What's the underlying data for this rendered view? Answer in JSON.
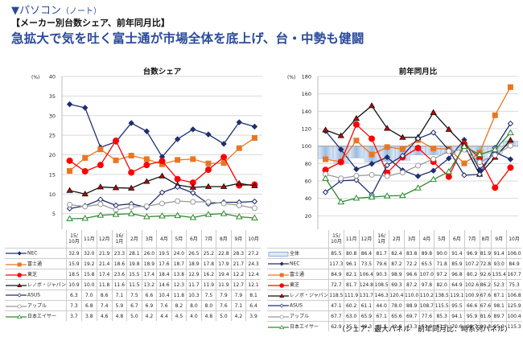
{
  "header": {
    "section": "▼パソコン",
    "section_sub": "（ノート）",
    "subtitle": "【メーカー別台数シェア、前年同月比】",
    "headline": "急拡大で気を吐く富士通が市場全体を底上げ、台・中勢も健闘"
  },
  "footnote": "（シェア：最大パネル　前年同月比：時系列パネル）",
  "chart_data": [
    {
      "type": "line",
      "title": "台数シェア",
      "ylabel": "(%)",
      "xlabel": "",
      "ylim": [
        0,
        40
      ],
      "yticks": [
        0,
        5,
        10,
        15,
        20,
        25,
        30,
        35,
        40
      ],
      "grid": true,
      "legend": "table-left",
      "categories": [
        "15/10月",
        "11月",
        "12月",
        "16/1月",
        "2月",
        "3月",
        "4月",
        "5月",
        "6月",
        "7月",
        "8月",
        "9月",
        "10月"
      ],
      "series": [
        {
          "name": "NEC",
          "color": "#1f2f6e",
          "marker": "diamond-filled",
          "values": [
            32.9,
            32.0,
            21.9,
            23.3,
            28.1,
            26.0,
            19.5,
            24.0,
            26.5,
            25.2,
            22.8,
            28.3,
            27.2
          ]
        },
        {
          "name": "富士通",
          "color": "#e87722",
          "marker": "square-filled",
          "values": [
            15.9,
            19.2,
            21.4,
            18.6,
            19.8,
            18.9,
            17.6,
            18.7,
            18.9,
            17.8,
            17.9,
            21.7,
            24.3
          ]
        },
        {
          "name": "東芝",
          "color": "#ff0000",
          "marker": "circle-filled",
          "values": [
            18.5,
            15.8,
            17.4,
            23.6,
            15.5,
            17.4,
            18.4,
            13.8,
            12.9,
            16.2,
            19.4,
            12.2,
            12.4
          ]
        },
        {
          "name": "レノボ・ジャパン",
          "color": "#111111",
          "marker": "triangle-red",
          "values": [
            10.9,
            10.0,
            11.8,
            11.6,
            11.5,
            13.2,
            14.6,
            12.3,
            11.7,
            11.9,
            11.9,
            12.7,
            12.1
          ]
        },
        {
          "name": "ASUS",
          "color": "#1f2f6e",
          "marker": "diamond-open",
          "values": [
            6.3,
            7.0,
            8.6,
            7.1,
            7.5,
            6.6,
            10.4,
            11.8,
            10.3,
            7.5,
            7.9,
            7.9,
            8.1
          ]
        },
        {
          "name": "アップル",
          "color": "#999999",
          "marker": "circle-open",
          "values": [
            7.3,
            6.8,
            7.4,
            5.9,
            6.7,
            6.9,
            7.6,
            8.2,
            8.0,
            8.0,
            7.6,
            7.1,
            6.4
          ]
        },
        {
          "name": "日本エイサー",
          "color": "#2e8b2e",
          "marker": "triangle-open",
          "values": [
            3.7,
            3.8,
            4.6,
            4.8,
            5.0,
            4.2,
            4.4,
            4.5,
            4.0,
            4.8,
            5.0,
            4.2,
            3.9
          ]
        }
      ]
    },
    {
      "type": "line",
      "title": "前年同月比",
      "ylabel": "(%)",
      "xlabel": "",
      "ylim": [
        0,
        180
      ],
      "yticks": [
        0,
        20,
        40,
        60,
        80,
        100,
        120,
        140,
        160,
        180
      ],
      "grid": true,
      "legend": "table-left",
      "baseline": 100,
      "categories": [
        "15/10月",
        "11月",
        "12月",
        "16/1月",
        "2月",
        "3月",
        "4月",
        "5月",
        "6月",
        "7月",
        "8月",
        "9月",
        "10月"
      ],
      "bar_series": {
        "name": "全体",
        "color": "#9dbbe0",
        "values": [
          85.5,
          80.8,
          86.4,
          81.7,
          82.4,
          83.8,
          89.8,
          90.0,
          91.4,
          96.9,
          81.9,
          91.4,
          106.0
        ]
      },
      "series": [
        {
          "name": "NEC",
          "color": "#1f2f6e",
          "marker": "diamond-filled",
          "values": [
            117.3,
            96.1,
            73.5,
            79.6,
            87.2,
            72.2,
            65.5,
            71.8,
            85.9,
            107.2,
            72.8,
            93.0,
            84.9
          ]
        },
        {
          "name": "富士通",
          "color": "#e87722",
          "marker": "square-filled",
          "values": [
            84.9,
            82.1,
            106.4,
            90.3,
            98.9,
            96.6,
            107.0,
            97.2,
            96.8,
            80.2,
            92.6,
            135.4,
            167.7
          ]
        },
        {
          "name": "東芝",
          "color": "#ff0000",
          "marker": "circle-filled",
          "values": [
            72.7,
            81.7,
            124.8,
            108.5,
            69.3,
            87.2,
            97.8,
            82.0,
            64.9,
            102.6,
            86.2,
            52.3,
            75.3
          ]
        },
        {
          "name": "レノボ・ジャパン",
          "color": "#111111",
          "marker": "triangle-red",
          "values": [
            118.5,
            111.9,
            131.7,
            146.3,
            120.4,
            110.0,
            110.2,
            138.5,
            119.1,
            100.9,
            67.6,
            87.1,
            106.8
          ]
        },
        {
          "name": "ASUS",
          "color": "#1f2f6e",
          "marker": "diamond-open",
          "values": [
            47.1,
            60.2,
            61.1,
            44.0,
            78.0,
            88.9,
            108.7,
            115.5,
            95.5,
            66.6,
            67.6,
            98.1,
            125.9
          ]
        },
        {
          "name": "アップル",
          "color": "#999999",
          "marker": "circle-open",
          "values": [
            67.7,
            63.0,
            65.9,
            67.1,
            65.6,
            69.7,
            77.6,
            85.3,
            94.1,
            95.9,
            81.6,
            89.7,
            100.4
          ]
        },
        {
          "name": "日本エイサー",
          "color": "#2e8b2e",
          "marker": "triangle-open",
          "values": [
            62.9,
            35.9,
            40.3,
            41.5,
            42.8,
            43.3,
            51.9,
            61.7,
            70.6,
            99.7,
            90.3,
            95.9,
            115.3
          ]
        }
      ]
    }
  ]
}
